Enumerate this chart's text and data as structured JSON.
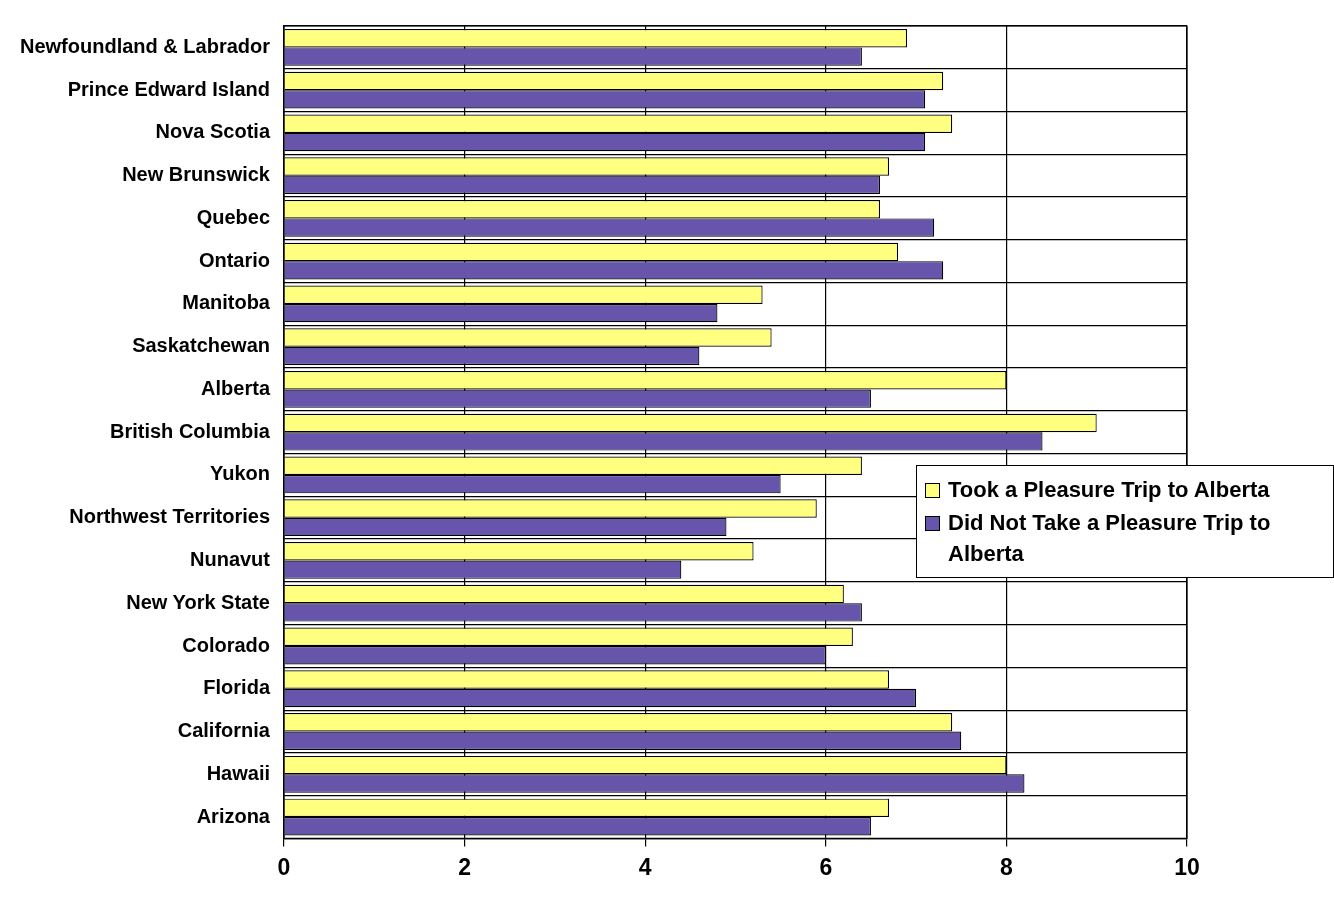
{
  "chart_data": {
    "type": "bar",
    "orientation": "horizontal",
    "categories": [
      "Newfoundland & Labrador",
      "Prince Edward Island",
      "Nova Scotia",
      "New Brunswick",
      "Quebec",
      "Ontario",
      "Manitoba",
      "Saskatchewan",
      "Alberta",
      "British Columbia",
      "Yukon",
      "Northwest Territories",
      "Nunavut",
      "New York State",
      "Colorado",
      "Florida",
      "California",
      "Hawaii",
      "Arizona"
    ],
    "series": [
      {
        "name": "Took a Pleasure Trip to Alberta",
        "color": "#ffff80",
        "values": [
          6.9,
          7.3,
          7.4,
          6.7,
          6.6,
          6.8,
          5.3,
          5.4,
          8.0,
          9.0,
          6.4,
          5.9,
          5.2,
          6.2,
          6.3,
          6.7,
          7.4,
          8.0,
          6.7
        ]
      },
      {
        "name": "Did Not Take a Pleasure Trip to Alberta",
        "color": "#6655aa",
        "values": [
          6.4,
          7.1,
          7.1,
          6.6,
          7.2,
          7.3,
          4.8,
          4.6,
          6.5,
          8.4,
          5.5,
          4.9,
          4.4,
          6.4,
          6.0,
          7.0,
          7.5,
          8.2,
          6.5
        ]
      }
    ],
    "xlim": [
      0,
      10
    ],
    "xticks": [
      0,
      2,
      4,
      6,
      8,
      10
    ],
    "grid": true,
    "legend": "right"
  }
}
